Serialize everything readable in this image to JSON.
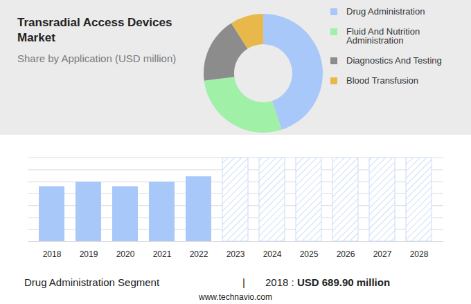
{
  "chart_data": [
    {
      "type": "donut",
      "title": "Transradial Access Devices Market",
      "subtitle": "Share by Application (USD million)",
      "categories": [
        "Drug Administration",
        "Fluid And Nutrition Administration",
        "Diagnostics And Testing",
        "Blood Transfusion"
      ],
      "values": [
        45,
        28,
        18,
        9
      ],
      "colors": [
        "#a8c8fa",
        "#a0f0a8",
        "#8c8c8c",
        "#e8b94a"
      ],
      "legend": "right"
    },
    {
      "type": "bar",
      "categories": [
        "2018",
        "2019",
        "2020",
        "2021",
        "2022",
        "2023",
        "2024",
        "2025",
        "2026",
        "2027",
        "2028"
      ],
      "values": [
        689.9,
        746,
        690,
        746,
        814,
        null,
        null,
        null,
        null,
        null,
        null
      ],
      "color": "#a8c8fa",
      "ylim": [
        0,
        1050
      ],
      "yticks": [
        0,
        150,
        300,
        450,
        600,
        750,
        900,
        1050
      ],
      "grid": true,
      "tick_labels": "x",
      "annotation": {
        "label": "Drug Administration Segment",
        "separator": "|",
        "year": "2018 : ",
        "value": "USD 689.90 million"
      }
    }
  ],
  "source": "www.technavio.com"
}
